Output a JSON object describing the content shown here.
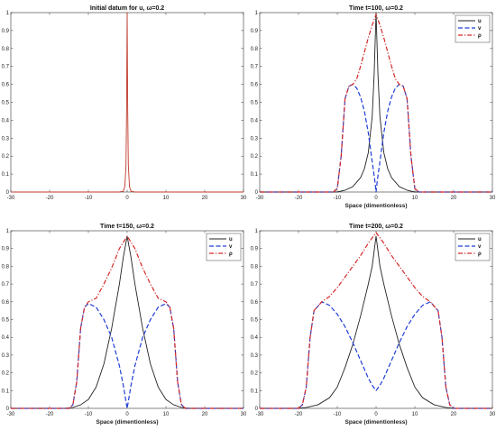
{
  "chart_data": [
    {
      "type": "line",
      "title": "Initial datum for u, ω=0.2",
      "xlabel": "",
      "ylabel": "",
      "xlim": [
        -30,
        30
      ],
      "ylim": [
        0,
        1
      ],
      "xticks": [
        -30,
        -20,
        -10,
        0,
        10,
        20,
        30
      ],
      "yticks": [
        0,
        0.1,
        0.2,
        0.3,
        0.4,
        0.5,
        0.6,
        0.7,
        0.8,
        0.9,
        1
      ],
      "grid": false,
      "legend": "",
      "series": [
        {
          "name": "",
          "color": "#c0392b",
          "style": "solid",
          "x": [
            -30,
            -2,
            -1,
            -0.6,
            -0.3,
            -0.15,
            0,
            0.15,
            0.3,
            0.6,
            1,
            2,
            30
          ],
          "y": [
            0,
            0,
            0.004,
            0.03,
            0.15,
            0.45,
            1.0,
            0.45,
            0.15,
            0.03,
            0.004,
            0,
            0
          ]
        }
      ]
    },
    {
      "type": "line",
      "title": "Time t=100, ω=0.2",
      "xlabel": "Space (dimentionless)",
      "ylabel": "",
      "xlim": [
        -30,
        30
      ],
      "ylim": [
        0,
        1
      ],
      "xticks": [
        -30,
        -20,
        -10,
        0,
        10,
        20,
        30
      ],
      "yticks": [
        0,
        0.1,
        0.2,
        0.3,
        0.4,
        0.5,
        0.6,
        0.7,
        0.8,
        0.9,
        1
      ],
      "grid": false,
      "legend": "top-right",
      "series": [
        {
          "name": "u",
          "color": "#222222",
          "style": "solid",
          "x": [
            -30,
            -10,
            -8,
            -6,
            -4,
            -3,
            -2,
            -1,
            -0.5,
            0,
            0.5,
            1,
            2,
            3,
            4,
            6,
            8,
            10,
            30
          ],
          "y": [
            0,
            0,
            0.01,
            0.03,
            0.08,
            0.13,
            0.22,
            0.42,
            0.65,
            1.0,
            0.65,
            0.42,
            0.22,
            0.13,
            0.08,
            0.03,
            0.01,
            0,
            0
          ]
        },
        {
          "name": "v",
          "color": "#1f3fd6",
          "style": "dashed",
          "x": [
            -30,
            -11,
            -10,
            -9,
            -8,
            -7,
            -6,
            -5,
            -4,
            -3,
            -2,
            -1,
            -0.3,
            0,
            0.3,
            1,
            2,
            3,
            4,
            5,
            6,
            7,
            8,
            9,
            10,
            11,
            30
          ],
          "y": [
            0,
            0,
            0.02,
            0.2,
            0.52,
            0.59,
            0.6,
            0.58,
            0.53,
            0.45,
            0.33,
            0.17,
            0.06,
            0.0,
            0.06,
            0.17,
            0.33,
            0.45,
            0.53,
            0.58,
            0.6,
            0.59,
            0.52,
            0.2,
            0.02,
            0,
            0
          ]
        },
        {
          "name": "ρ",
          "color": "#d62728",
          "style": "dashdot",
          "x": [
            -30,
            -11,
            -10,
            -9,
            -8,
            -7,
            -6,
            -5,
            -4,
            -3,
            -2,
            -1,
            0,
            1,
            2,
            3,
            4,
            5,
            6,
            7,
            8,
            9,
            10,
            11,
            30
          ],
          "y": [
            0,
            0,
            0.02,
            0.2,
            0.52,
            0.59,
            0.6,
            0.63,
            0.7,
            0.78,
            0.86,
            0.93,
            0.99,
            0.93,
            0.86,
            0.78,
            0.7,
            0.63,
            0.6,
            0.59,
            0.52,
            0.2,
            0.02,
            0,
            0
          ]
        }
      ]
    },
    {
      "type": "line",
      "title": "Time t=150, ω=0.2",
      "xlabel": "Space (dimentionless)",
      "ylabel": "",
      "xlim": [
        -30,
        30
      ],
      "ylim": [
        0,
        1
      ],
      "xticks": [
        -30,
        -20,
        -10,
        0,
        10,
        20,
        30
      ],
      "yticks": [
        0,
        0.1,
        0.2,
        0.3,
        0.4,
        0.5,
        0.6,
        0.7,
        0.8,
        0.9,
        1
      ],
      "grid": false,
      "legend": "top-right",
      "series": [
        {
          "name": "u",
          "color": "#222222",
          "style": "solid",
          "x": [
            -30,
            -16,
            -14,
            -12,
            -10,
            -8,
            -6,
            -4,
            -2,
            -1,
            0,
            1,
            2,
            4,
            6,
            8,
            10,
            12,
            14,
            16,
            30
          ],
          "y": [
            0,
            0,
            0.005,
            0.02,
            0.05,
            0.12,
            0.25,
            0.45,
            0.7,
            0.85,
            0.97,
            0.85,
            0.7,
            0.45,
            0.25,
            0.12,
            0.05,
            0.02,
            0.005,
            0,
            0
          ]
        },
        {
          "name": "v",
          "color": "#1f3fd6",
          "style": "dashed",
          "x": [
            -30,
            -15,
            -14,
            -13,
            -12,
            -11,
            -10,
            -8,
            -6,
            -4,
            -2,
            -1,
            0,
            1,
            2,
            4,
            6,
            8,
            10,
            11,
            12,
            13,
            14,
            15,
            30
          ],
          "y": [
            0,
            0,
            0.02,
            0.15,
            0.45,
            0.57,
            0.59,
            0.57,
            0.5,
            0.4,
            0.24,
            0.13,
            0.0,
            0.13,
            0.24,
            0.4,
            0.5,
            0.57,
            0.59,
            0.57,
            0.45,
            0.15,
            0.02,
            0,
            0
          ]
        },
        {
          "name": "ρ",
          "color": "#d62728",
          "style": "dashdot",
          "x": [
            -30,
            -15,
            -14,
            -13,
            -12,
            -11,
            -10,
            -8,
            -6,
            -4,
            -2,
            0,
            2,
            4,
            6,
            8,
            10,
            11,
            12,
            13,
            14,
            15,
            30
          ],
          "y": [
            0,
            0,
            0.02,
            0.15,
            0.45,
            0.57,
            0.6,
            0.62,
            0.7,
            0.79,
            0.9,
            0.97,
            0.9,
            0.79,
            0.7,
            0.62,
            0.6,
            0.57,
            0.45,
            0.15,
            0.02,
            0,
            0
          ]
        }
      ]
    },
    {
      "type": "line",
      "title": "Time t=200, ω=0.2",
      "xlabel": "Space (dimentionless)",
      "ylabel": "",
      "xlim": [
        -30,
        30
      ],
      "ylim": [
        0,
        1
      ],
      "xticks": [
        -30,
        -20,
        -10,
        0,
        10,
        20,
        30
      ],
      "yticks": [
        0,
        0.1,
        0.2,
        0.3,
        0.4,
        0.5,
        0.6,
        0.7,
        0.8,
        0.9,
        1
      ],
      "grid": false,
      "legend": "top-right",
      "series": [
        {
          "name": "u",
          "color": "#222222",
          "style": "solid",
          "x": [
            -30,
            -20,
            -18,
            -15,
            -12,
            -10,
            -8,
            -6,
            -4,
            -2,
            -1,
            0,
            1,
            2,
            4,
            6,
            8,
            10,
            12,
            15,
            18,
            20,
            30
          ],
          "y": [
            0,
            0,
            0.005,
            0.02,
            0.06,
            0.12,
            0.23,
            0.36,
            0.52,
            0.7,
            0.8,
            0.97,
            0.8,
            0.7,
            0.52,
            0.36,
            0.23,
            0.12,
            0.06,
            0.02,
            0.005,
            0,
            0
          ]
        },
        {
          "name": "v",
          "color": "#1f3fd6",
          "style": "dashed",
          "x": [
            -30,
            -20,
            -19,
            -18,
            -17,
            -16,
            -14,
            -12,
            -10,
            -8,
            -6,
            -4,
            -2,
            -1,
            0,
            1,
            2,
            4,
            6,
            8,
            10,
            12,
            14,
            16,
            17,
            18,
            19,
            20,
            30
          ],
          "y": [
            0,
            0,
            0.02,
            0.12,
            0.4,
            0.55,
            0.6,
            0.58,
            0.53,
            0.46,
            0.37,
            0.27,
            0.17,
            0.13,
            0.1,
            0.13,
            0.17,
            0.27,
            0.37,
            0.46,
            0.53,
            0.58,
            0.6,
            0.55,
            0.4,
            0.12,
            0.02,
            0,
            0
          ]
        },
        {
          "name": "ρ",
          "color": "#d62728",
          "style": "dashdot",
          "x": [
            -30,
            -20,
            -19,
            -18,
            -17,
            -16,
            -14,
            -12,
            -10,
            -8,
            -6,
            -4,
            -2,
            0,
            2,
            4,
            6,
            8,
            10,
            12,
            14,
            16,
            17,
            18,
            19,
            20,
            30
          ],
          "y": [
            0,
            0,
            0.02,
            0.12,
            0.4,
            0.55,
            0.6,
            0.63,
            0.68,
            0.74,
            0.8,
            0.86,
            0.93,
            0.99,
            0.93,
            0.86,
            0.8,
            0.74,
            0.68,
            0.63,
            0.6,
            0.55,
            0.4,
            0.12,
            0.02,
            0,
            0
          ]
        }
      ]
    }
  ]
}
